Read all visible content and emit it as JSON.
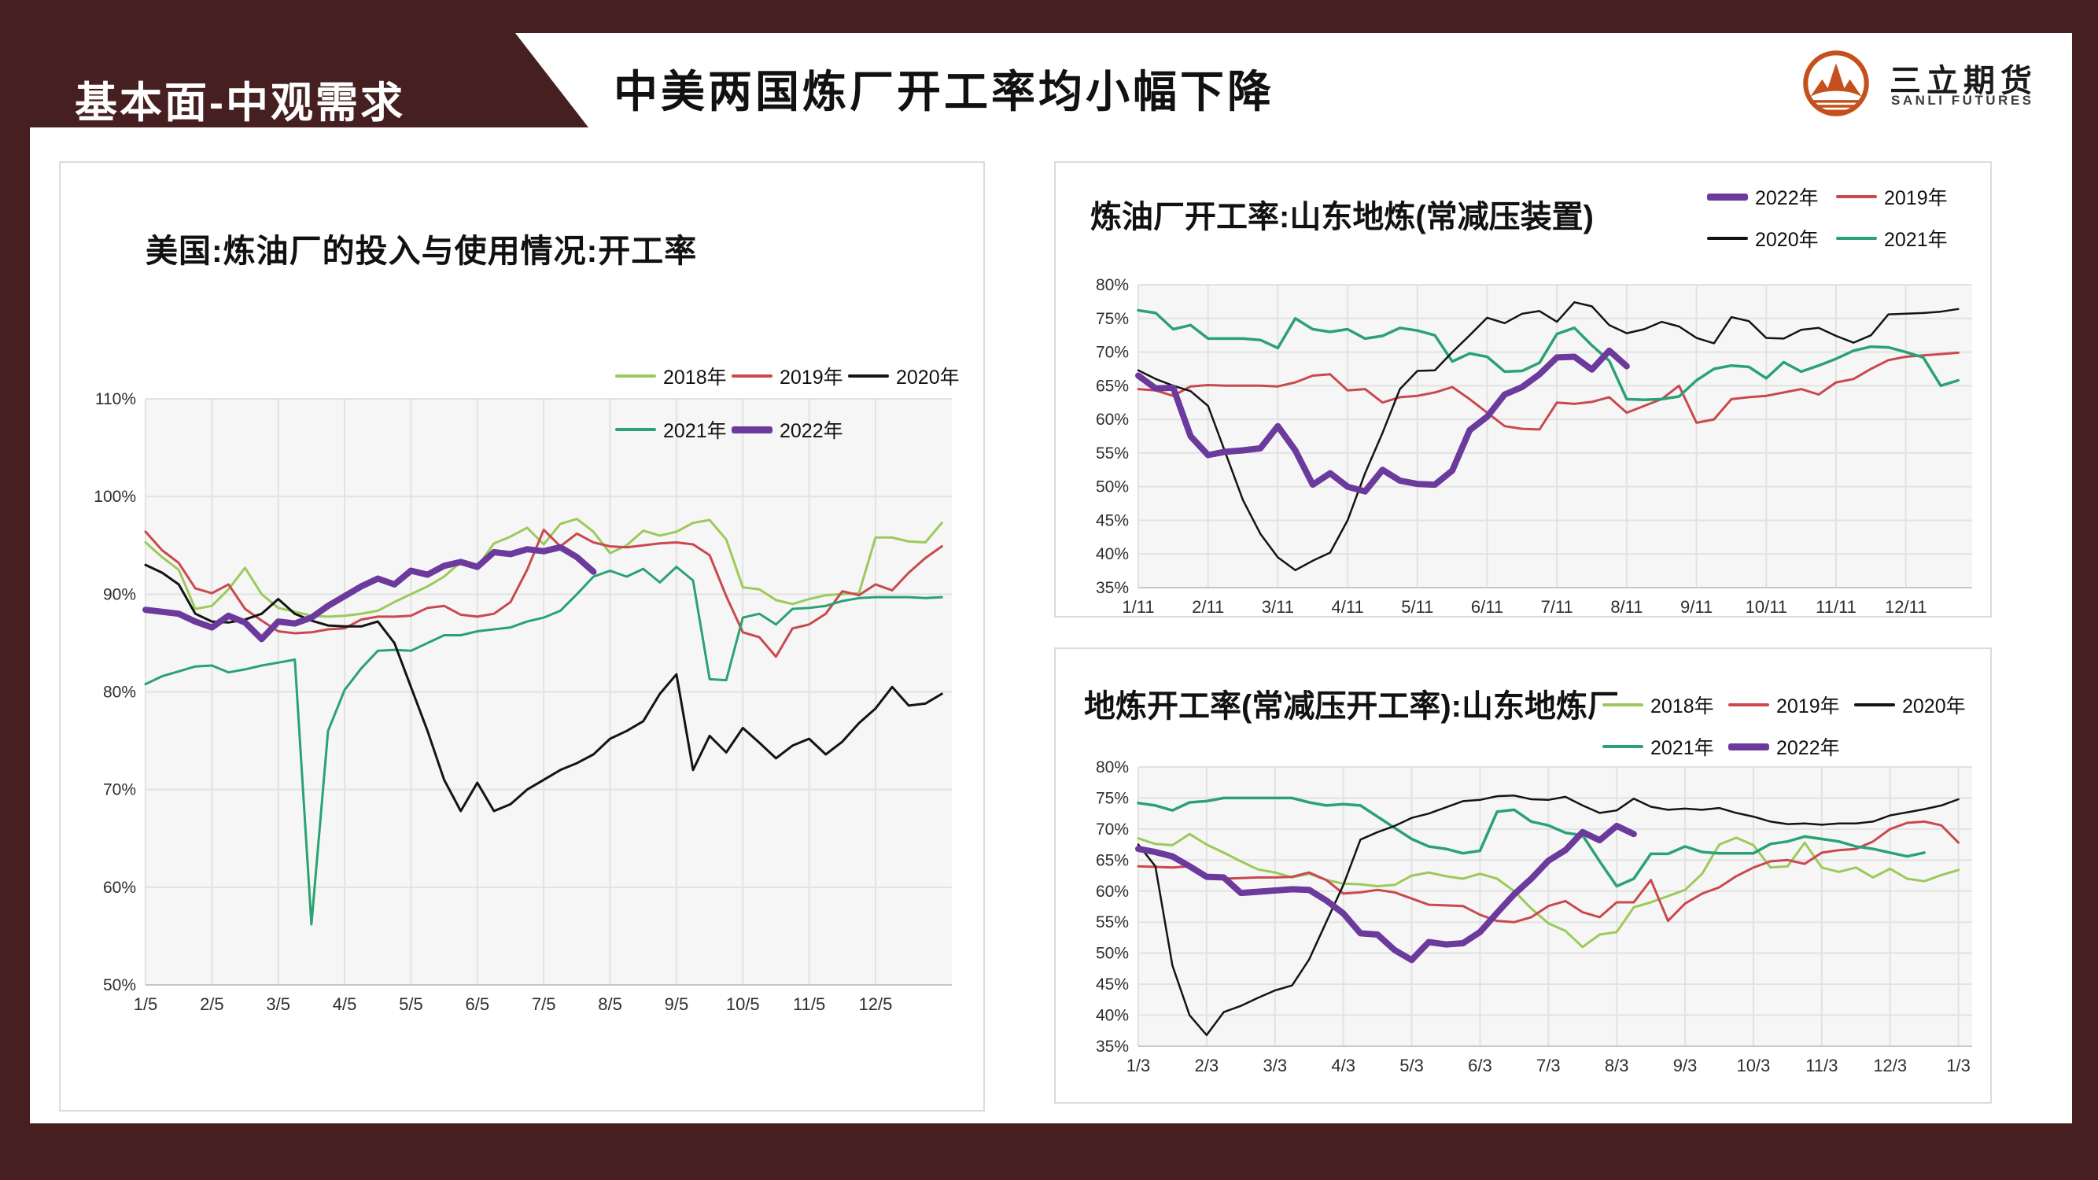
{
  "header": {
    "section_label": "基本面-中观需求",
    "title": "中美两国炼厂开工率均小幅下降",
    "brand": {
      "name_cn": "三立期货",
      "name_en": "SANLI FUTURES",
      "logo_icon": "sanli-mountain-sun-logo-icon"
    }
  },
  "colors": {
    "frame_maroon": "#461f20",
    "logo_orange": "#c4511d",
    "plot_background": "#f6f6f6",
    "gridline": "#e2e2e2",
    "series_2018": "#9cca5a",
    "series_2019": "#c9494f",
    "series_2020": "#141414",
    "series_2021": "#2aa273",
    "series_2022": "#6c3a9c"
  },
  "chart_data": [
    {
      "type": "line",
      "title": "美国:炼油厂的投入与使用情况:开工率",
      "ylabel": "",
      "xlabel": "",
      "ylim": [
        50,
        110
      ],
      "y_ticks": [
        110,
        100,
        90,
        80,
        70,
        60,
        50
      ],
      "y_suffix": "%",
      "grid": true,
      "x_domain": [
        1,
        13.15
      ],
      "x_tick_labels": [
        "1/5",
        "2/5",
        "3/5",
        "4/5",
        "5/5",
        "6/5",
        "7/5",
        "8/5",
        "9/5",
        "10/5",
        "11/5",
        "12/5"
      ],
      "legend_position": "top-right-two-rows",
      "legend_rows": [
        [
          "2018年",
          "2019年",
          "2020年"
        ],
        [
          "2021年",
          "2022年"
        ]
      ],
      "series": [
        {
          "name": "2018年",
          "color": "#9cca5a",
          "width": 3,
          "x_start": 1,
          "x_step": 0.25,
          "values": [
            95.3,
            93.8,
            92.5,
            88.5,
            88.8,
            90.5,
            92.7,
            90.0,
            88.6,
            88.2,
            87.8,
            87.7,
            87.8,
            88.0,
            88.3,
            89.2,
            90.0,
            90.8,
            91.8,
            93.3,
            92.8,
            95.2,
            95.9,
            96.8,
            95.1,
            97.2,
            97.7,
            96.4,
            94.2,
            95.0,
            96.5,
            96.0,
            96.4,
            97.3,
            97.6,
            95.6,
            90.7,
            90.5,
            89.4,
            89.0,
            89.5,
            89.9,
            90.0,
            90.1,
            95.8,
            95.8,
            95.4,
            95.3,
            97.3
          ]
        },
        {
          "name": "2019年",
          "color": "#c9494f",
          "width": 3,
          "x_start": 1,
          "x_step": 0.25,
          "values": [
            96.4,
            94.5,
            93.2,
            90.6,
            90.1,
            91.0,
            88.5,
            87.3,
            86.2,
            86.0,
            86.1,
            86.4,
            86.5,
            87.4,
            87.7,
            87.7,
            87.8,
            88.6,
            88.8,
            87.9,
            87.7,
            88.0,
            89.2,
            92.5,
            96.6,
            94.9,
            96.2,
            95.3,
            94.9,
            94.8,
            95.0,
            95.2,
            95.3,
            95.1,
            94.0,
            89.8,
            86.1,
            85.6,
            83.6,
            86.5,
            86.9,
            88.0,
            90.3,
            89.9,
            91.0,
            90.4,
            92.2,
            93.7,
            94.9
          ]
        },
        {
          "name": "2021年",
          "color": "#2aa273",
          "width": 3,
          "x_start": 1,
          "x_step": 0.25,
          "values": [
            80.8,
            81.6,
            82.1,
            82.6,
            82.7,
            82.0,
            82.3,
            82.7,
            83.0,
            83.3,
            56.2,
            76.0,
            80.2,
            82.4,
            84.2,
            84.3,
            84.2,
            85.0,
            85.8,
            85.8,
            86.2,
            86.4,
            86.6,
            87.2,
            87.6,
            88.3,
            90.0,
            91.8,
            92.4,
            91.8,
            92.6,
            91.2,
            92.8,
            91.4,
            81.3,
            81.2,
            87.6,
            88.0,
            86.9,
            88.5,
            88.6,
            88.8,
            89.3,
            89.6,
            89.7,
            89.7,
            89.7,
            89.6,
            89.7
          ]
        },
        {
          "name": "2020年",
          "color": "#141414",
          "width": 3,
          "x_start": 1,
          "x_step": 0.25,
          "values": [
            93.0,
            92.2,
            91.0,
            88.0,
            87.2,
            87.1,
            87.4,
            88.0,
            89.5,
            88.0,
            87.3,
            86.8,
            86.7,
            86.7,
            87.2,
            85.0,
            80.5,
            76.0,
            71.0,
            67.8,
            70.7,
            67.8,
            68.5,
            70.0,
            71.0,
            72.0,
            72.7,
            73.6,
            75.2,
            76.0,
            77.0,
            79.8,
            81.8,
            72.0,
            75.5,
            73.8,
            76.3,
            74.8,
            73.2,
            74.5,
            75.2,
            73.6,
            74.9,
            76.8,
            78.3,
            80.5,
            78.6,
            78.8,
            79.8
          ]
        },
        {
          "name": "2022年",
          "color": "#6c3a9c",
          "width": 8,
          "x_start": 1,
          "x_step": 0.25,
          "values": [
            88.4,
            88.2,
            88.0,
            87.2,
            86.6,
            87.8,
            87.1,
            85.4,
            87.2,
            87.0,
            87.6,
            88.8,
            89.8,
            90.8,
            91.6,
            91.0,
            92.4,
            92.0,
            92.9,
            93.3,
            92.8,
            94.3,
            94.1,
            94.6,
            94.4,
            94.8,
            93.8,
            92.3
          ]
        }
      ]
    },
    {
      "type": "line",
      "title": "炼油厂开工率:山东地炼(常减压装置)",
      "ylabel": "",
      "xlabel": "",
      "ylim": [
        35,
        80
      ],
      "y_ticks": [
        80,
        75,
        70,
        65,
        60,
        55,
        50,
        45,
        40,
        35
      ],
      "y_suffix": "%",
      "grid": true,
      "x_domain": [
        1,
        12.95
      ],
      "x_tick_labels": [
        "1/11",
        "2/11",
        "3/11",
        "4/11",
        "5/11",
        "6/11",
        "7/11",
        "8/11",
        "9/11",
        "10/11",
        "11/11",
        "12/11"
      ],
      "legend_position": "top-right-grid-2x2",
      "legend_rows": [
        [
          "2022年",
          "2019年"
        ],
        [
          "2020年",
          "2021年"
        ]
      ],
      "series": [
        {
          "name": "2019年",
          "color": "#c9494f",
          "width": 3,
          "x_start": 1,
          "x_step": 0.25,
          "values": [
            64.5,
            64.3,
            63.5,
            64.9,
            65.1,
            65.0,
            65.0,
            65.0,
            64.9,
            65.5,
            66.5,
            66.7,
            64.3,
            64.5,
            62.5,
            63.3,
            63.5,
            64.0,
            64.8,
            63.0,
            61.0,
            59.0,
            58.6,
            58.5,
            62.5,
            62.3,
            62.6,
            63.3,
            61.0,
            62.0,
            63.0,
            65.0,
            59.5,
            60.0,
            63.0,
            63.3,
            63.5,
            64.0,
            64.5,
            63.7,
            65.5,
            66.0,
            67.5,
            68.8,
            69.3,
            69.5,
            69.7,
            69.9
          ]
        },
        {
          "name": "2021年",
          "color": "#2aa273",
          "width": 3.5,
          "x_start": 1,
          "x_step": 0.25,
          "values": [
            76.2,
            75.8,
            73.4,
            74.0,
            72.0,
            72.0,
            72.0,
            71.8,
            70.6,
            75.0,
            73.4,
            73.0,
            73.4,
            72.0,
            72.4,
            73.6,
            73.2,
            72.5,
            68.6,
            69.8,
            69.3,
            67.1,
            67.2,
            68.4,
            72.7,
            73.6,
            71.0,
            68.7,
            63.0,
            62.9,
            63.0,
            63.4,
            65.8,
            67.5,
            68.0,
            67.8,
            66.1,
            68.5,
            67.1,
            68.0,
            69.0,
            70.2,
            70.8,
            70.7,
            70.0,
            69.2,
            65.0,
            65.8
          ]
        },
        {
          "name": "2020年",
          "color": "#141414",
          "width": 2.5,
          "x_start": 1,
          "x_step": 0.25,
          "values": [
            67.3,
            66.0,
            65.0,
            64.2,
            62.0,
            55.0,
            48.0,
            43.0,
            39.5,
            37.6,
            39.0,
            40.2,
            45.0,
            52.0,
            58.0,
            64.5,
            67.2,
            67.3,
            70.0,
            72.5,
            75.1,
            74.3,
            75.7,
            76.1,
            74.5,
            77.4,
            76.8,
            74.0,
            72.8,
            73.4,
            74.5,
            73.8,
            72.1,
            71.3,
            75.2,
            74.6,
            72.1,
            72.0,
            73.3,
            73.6,
            72.4,
            71.4,
            72.5,
            75.6,
            75.7,
            75.8,
            76.0,
            76.4
          ]
        },
        {
          "name": "2022年",
          "color": "#6c3a9c",
          "width": 8,
          "x_start": 1,
          "x_step": 0.25,
          "values": [
            66.5,
            64.6,
            64.7,
            57.5,
            54.7,
            55.2,
            55.4,
            55.7,
            59.0,
            55.4,
            50.3,
            52.0,
            50.0,
            49.3,
            52.5,
            50.9,
            50.4,
            50.3,
            52.4,
            58.4,
            60.4,
            63.7,
            64.8,
            66.7,
            69.2,
            69.3,
            67.4,
            70.2,
            67.9
          ]
        }
      ]
    },
    {
      "type": "line",
      "title": "地炼开工率(常减压开工率):山东地炼厂",
      "ylabel": "",
      "xlabel": "",
      "ylim": [
        35,
        80
      ],
      "y_ticks": [
        80,
        75,
        70,
        65,
        60,
        55,
        50,
        45,
        40,
        35
      ],
      "y_suffix": "%",
      "grid": true,
      "x_domain": [
        1,
        13.2
      ],
      "x_tick_labels": [
        "1/3",
        "2/3",
        "3/3",
        "4/3",
        "5/3",
        "6/3",
        "7/3",
        "8/3",
        "9/3",
        "10/3",
        "11/3",
        "12/3",
        "1/3"
      ],
      "legend_position": "top-right-two-rows",
      "legend_rows": [
        [
          "2018年",
          "2019年",
          "2020年"
        ],
        [
          "2021年",
          "2022年"
        ]
      ],
      "series": [
        {
          "name": "2018年",
          "color": "#9cca5a",
          "width": 3,
          "x_start": 1,
          "x_step": 0.25,
          "values": [
            68.5,
            67.6,
            67.4,
            69.2,
            67.5,
            66.2,
            64.8,
            63.5,
            63.0,
            62.2,
            62.8,
            61.8,
            61.2,
            61.1,
            60.8,
            61.0,
            62.5,
            63.0,
            62.4,
            62.0,
            62.8,
            62.0,
            60.0,
            57.2,
            54.8,
            53.6,
            51.0,
            53.0,
            53.4,
            57.4,
            58.2,
            59.2,
            60.2,
            62.8,
            67.5,
            68.6,
            67.4,
            63.8,
            64.0,
            67.8,
            63.8,
            63.1,
            63.8,
            62.2,
            63.6,
            62.0,
            61.6,
            62.6,
            63.4
          ]
        },
        {
          "name": "2019年",
          "color": "#c9494f",
          "width": 3,
          "x_start": 1,
          "x_step": 0.25,
          "values": [
            64.0,
            63.9,
            63.8,
            64.0,
            62.3,
            62.0,
            62.1,
            62.2,
            62.2,
            62.3,
            63.0,
            61.8,
            59.6,
            59.8,
            60.2,
            59.8,
            58.8,
            57.8,
            57.7,
            57.6,
            56.2,
            55.2,
            55.0,
            55.8,
            57.6,
            58.4,
            56.6,
            55.8,
            58.2,
            58.2,
            61.8,
            55.2,
            58.0,
            59.6,
            60.6,
            62.4,
            63.8,
            64.8,
            65.0,
            64.4,
            66.2,
            66.6,
            66.8,
            68.0,
            70.0,
            71.0,
            71.2,
            70.6,
            67.8
          ]
        },
        {
          "name": "2021年",
          "color": "#2aa273",
          "width": 3.5,
          "x_start": 1,
          "x_step": 0.25,
          "values": [
            74.2,
            73.8,
            73.0,
            74.3,
            74.5,
            75.0,
            75.0,
            75.0,
            75.0,
            75.0,
            74.3,
            73.8,
            74.0,
            73.8,
            72.0,
            70.2,
            68.4,
            67.2,
            66.8,
            66.1,
            66.5,
            72.8,
            73.1,
            71.2,
            70.6,
            69.4,
            69.0,
            64.8,
            60.8,
            62.0,
            66.0,
            66.0,
            67.2,
            66.3,
            66.1,
            66.1,
            66.1,
            67.6,
            68.0,
            68.8,
            68.4,
            68.0,
            67.2,
            66.8,
            66.2,
            65.6,
            66.2
          ]
        },
        {
          "name": "2020年",
          "color": "#141414",
          "width": 2.5,
          "x_start": 1,
          "x_step": 0.25,
          "values": [
            67.5,
            64.0,
            48.0,
            40.0,
            36.8,
            40.5,
            41.5,
            42.8,
            44.0,
            44.8,
            49.0,
            55.0,
            61.0,
            68.3,
            69.5,
            70.5,
            71.8,
            72.5,
            73.5,
            74.5,
            74.7,
            75.3,
            75.4,
            74.8,
            74.7,
            75.2,
            73.8,
            72.6,
            73.0,
            74.9,
            73.6,
            73.1,
            73.3,
            73.1,
            73.4,
            72.6,
            72.0,
            71.2,
            70.8,
            70.9,
            70.7,
            70.9,
            70.9,
            71.2,
            72.2,
            72.7,
            73.2,
            73.8,
            74.8
          ]
        },
        {
          "name": "2022年",
          "color": "#6c3a9c",
          "width": 8,
          "x_start": 1,
          "x_step": 0.25,
          "values": [
            66.8,
            66.3,
            65.6,
            64.0,
            62.3,
            62.2,
            59.7,
            59.9,
            60.1,
            60.3,
            60.2,
            58.5,
            56.4,
            53.2,
            53.0,
            50.5,
            48.9,
            51.8,
            51.4,
            51.6,
            53.4,
            56.5,
            59.5,
            62.0,
            64.9,
            66.6,
            69.5,
            68.2,
            70.5,
            69.2
          ]
        }
      ]
    }
  ]
}
